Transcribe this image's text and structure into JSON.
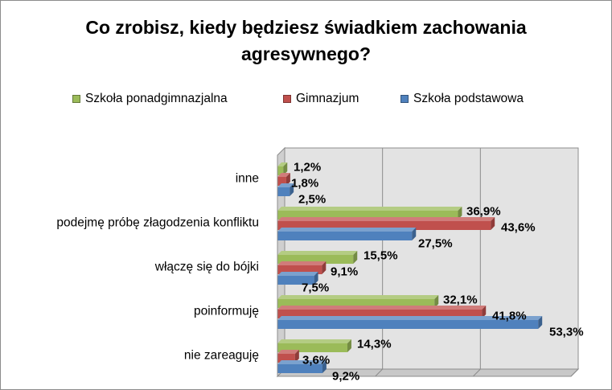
{
  "colors": {
    "green": "#9bbb59",
    "red": "#c0504d",
    "blue": "#4f81bd"
  },
  "chart_data": {
    "type": "bar",
    "orientation": "horizontal",
    "title": "Co zrobisz, kiedy będziesz świadkiem zachowania agresywnego?",
    "categories": [
      "inne",
      "podejmę próbę złagodzenia konfliktu",
      "włączę się do bójki",
      "poinformuję",
      "nie zareaguję"
    ],
    "series": [
      {
        "name": "Szkoła ponadgimnazjalna",
        "color": "#9bbb59",
        "values": [
          1.2,
          36.9,
          15.5,
          32.1,
          14.3
        ],
        "labels": [
          "1,2%",
          "36,9%",
          "15,5%",
          "32,1%",
          "14,3%"
        ]
      },
      {
        "name": "Gimnazjum",
        "color": "#c0504d",
        "values": [
          1.8,
          43.6,
          9.1,
          41.8,
          3.6
        ],
        "labels": [
          "1,8%",
          "43,6%",
          "9,1%",
          "41,8%",
          "3,6%"
        ]
      },
      {
        "name": "Szkoła podstawowa",
        "color": "#4f81bd",
        "values": [
          2.5,
          27.5,
          7.5,
          53.3,
          9.2
        ],
        "labels": [
          "2,5%",
          "27,5%",
          "7,5%",
          "53,3%",
          "9,2%"
        ]
      }
    ],
    "xlim": [
      0,
      60
    ],
    "gridlines": true,
    "legend_position": "top",
    "style": "3d"
  }
}
